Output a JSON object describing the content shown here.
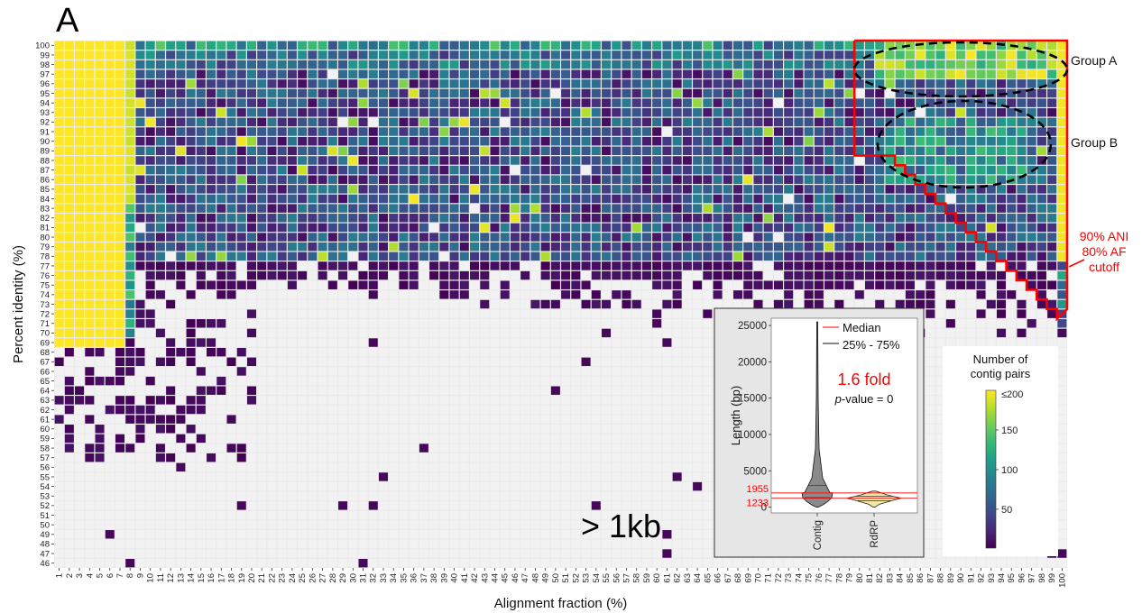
{
  "panel_label": "A",
  "colors": {
    "panel_bg": "#EBEBEB",
    "empty_cell": "#F2F2F2",
    "cutoff_red": "#FF0000",
    "ellipse": "#000000",
    "viridis": [
      "#440154",
      "#482878",
      "#3E4A89",
      "#31688E",
      "#26828E",
      "#1F9E89",
      "#35B779",
      "#6DCD59",
      "#B4DE2C",
      "#FDE725"
    ]
  },
  "annotations": {
    "group_a": "Group A",
    "group_b": "Group B",
    "cutoff_line1": "90% ANI",
    "cutoff_line2": "80% AF",
    "cutoff_line3": "cutoff",
    "size_label": "> 1kb"
  },
  "chart_data": [
    {
      "type": "heatmap",
      "xlabel": "Alignment fraction (%)",
      "ylabel": "Percent identity (%)",
      "x_range": [
        1,
        100
      ],
      "y_range": [
        46,
        100
      ],
      "x_ticks": [
        1,
        2,
        3,
        4,
        5,
        6,
        7,
        8,
        9,
        10,
        11,
        12,
        13,
        14,
        15,
        16,
        17,
        18,
        19,
        20,
        21,
        22,
        23,
        24,
        25,
        26,
        27,
        28,
        29,
        30,
        31,
        32,
        33,
        34,
        35,
        36,
        37,
        38,
        39,
        40,
        41,
        42,
        43,
        44,
        45,
        46,
        47,
        48,
        49,
        50,
        51,
        52,
        53,
        54,
        55,
        56,
        57,
        58,
        59,
        60,
        61,
        62,
        63,
        64,
        65,
        66,
        67,
        68,
        69,
        70,
        71,
        72,
        73,
        74,
        75,
        76,
        77,
        78,
        79,
        80,
        81,
        82,
        83,
        84,
        85,
        86,
        87,
        88,
        89,
        90,
        91,
        92,
        93,
        94,
        95,
        96,
        97,
        98,
        99,
        100
      ],
      "y_ticks": [
        46,
        47,
        48,
        49,
        50,
        51,
        52,
        53,
        54,
        55,
        56,
        57,
        58,
        59,
        60,
        61,
        62,
        63,
        64,
        65,
        66,
        67,
        68,
        69,
        70,
        71,
        72,
        73,
        74,
        75,
        76,
        77,
        78,
        79,
        80,
        81,
        82,
        83,
        84,
        85,
        86,
        87,
        88,
        89,
        90,
        91,
        92,
        93,
        94,
        95,
        96,
        97,
        98,
        99,
        100
      ],
      "legend": {
        "title_line1": "Number of",
        "title_line2": "contig pairs",
        "ticks": [
          50,
          100,
          150
        ],
        "max_label": "≤200",
        "range": [
          1,
          200
        ]
      },
      "cutoff": {
        "ani_percent": 90,
        "af_percent": 80
      }
    },
    {
      "type": "violin",
      "ylabel": "Length (bp)",
      "y_ticks": [
        0,
        5000,
        10000,
        15000,
        20000,
        25000
      ],
      "ylim": [
        -800,
        26000
      ],
      "categories": [
        "Contig",
        "RdRP"
      ],
      "legend": [
        "Median",
        "25% - 75%"
      ],
      "fold_text": "1.6 fold",
      "pvalue_prefix": "p",
      "pvalue_suffix": "-value = 0",
      "reference_values": [
        1955,
        1233
      ],
      "reference_labels": [
        "1955",
        "1233"
      ],
      "series": [
        {
          "name": "Contig",
          "median": 1955,
          "q1": 1300,
          "q3": 3000,
          "max": 25500
        },
        {
          "name": "RdRP",
          "median": 1233,
          "q1": 900,
          "q3": 1500,
          "max": 2200
        }
      ]
    }
  ]
}
